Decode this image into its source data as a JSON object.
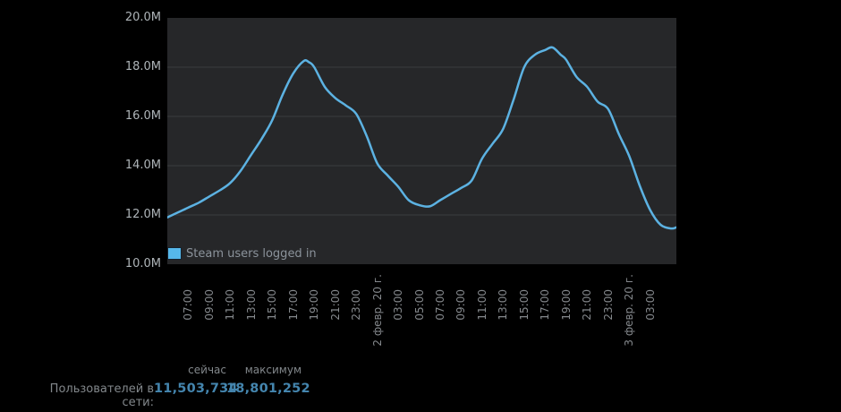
{
  "chart_data": {
    "type": "line",
    "legend": "Steam users logged in",
    "line_color": "#5cb2e2",
    "plot_bg": "#262729",
    "grid_color": "#3a3c3e",
    "grid": "horizontal-only",
    "y_unit": "M users",
    "y_range": [
      10,
      20
    ],
    "y_ticks": [
      {
        "value": 20,
        "label": "20.0M"
      },
      {
        "value": 18,
        "label": "18.0M"
      },
      {
        "value": 16,
        "label": "16.0M"
      },
      {
        "value": 14,
        "label": "14.0M"
      },
      {
        "value": 12,
        "label": "12.0M"
      },
      {
        "value": 10,
        "label": "10.0M"
      }
    ],
    "x_range_hours": [
      0,
      48.5
    ],
    "x_tick_first_hour": 2,
    "x_tick_step_hours": 2,
    "x_ticks": [
      "07:00",
      "09:00",
      "11:00",
      "13:00",
      "15:00",
      "17:00",
      "19:00",
      "21:00",
      "23:00",
      "2 февр. 20 г.",
      "03:00",
      "05:00",
      "07:00",
      "09:00",
      "11:00",
      "13:00",
      "15:00",
      "17:00",
      "19:00",
      "21:00",
      "23:00",
      "3 февр. 20 г.",
      "03:00"
    ],
    "series": [
      {
        "name": "Steam users logged in",
        "points_hours_vs_millions": [
          [
            0,
            11.9
          ],
          [
            1,
            12.1
          ],
          [
            2,
            12.3
          ],
          [
            3,
            12.5
          ],
          [
            4,
            12.75
          ],
          [
            5,
            13.0
          ],
          [
            6,
            13.3
          ],
          [
            7,
            13.8
          ],
          [
            8,
            14.45
          ],
          [
            9,
            15.1
          ],
          [
            10,
            15.85
          ],
          [
            11,
            16.9
          ],
          [
            12,
            17.75
          ],
          [
            13,
            18.25
          ],
          [
            13.5,
            18.2
          ],
          [
            14,
            18.0
          ],
          [
            15,
            17.2
          ],
          [
            16,
            16.75
          ],
          [
            17,
            16.45
          ],
          [
            18,
            16.1
          ],
          [
            19,
            15.2
          ],
          [
            20,
            14.1
          ],
          [
            21,
            13.6
          ],
          [
            22,
            13.15
          ],
          [
            23,
            12.6
          ],
          [
            24,
            12.4
          ],
          [
            25,
            12.35
          ],
          [
            26,
            12.6
          ],
          [
            27,
            12.85
          ],
          [
            28,
            13.1
          ],
          [
            29,
            13.4
          ],
          [
            30,
            14.3
          ],
          [
            31,
            14.9
          ],
          [
            32,
            15.5
          ],
          [
            33,
            16.7
          ],
          [
            34,
            18.0
          ],
          [
            35,
            18.5
          ],
          [
            36,
            18.7
          ],
          [
            36.7,
            18.8
          ],
          [
            37.5,
            18.5
          ],
          [
            38,
            18.3
          ],
          [
            39,
            17.6
          ],
          [
            40,
            17.2
          ],
          [
            41,
            16.6
          ],
          [
            42,
            16.3
          ],
          [
            43,
            15.3
          ],
          [
            44,
            14.4
          ],
          [
            45,
            13.2
          ],
          [
            46,
            12.2
          ],
          [
            47,
            11.6
          ],
          [
            48,
            11.45
          ],
          [
            48.5,
            11.5
          ]
        ]
      }
    ]
  },
  "stats": {
    "col_now": "сейчас",
    "col_max": "максимум",
    "row_label": "Пользователей в сети:",
    "now_value": "11,503,734",
    "max_value": "18,801,252"
  }
}
